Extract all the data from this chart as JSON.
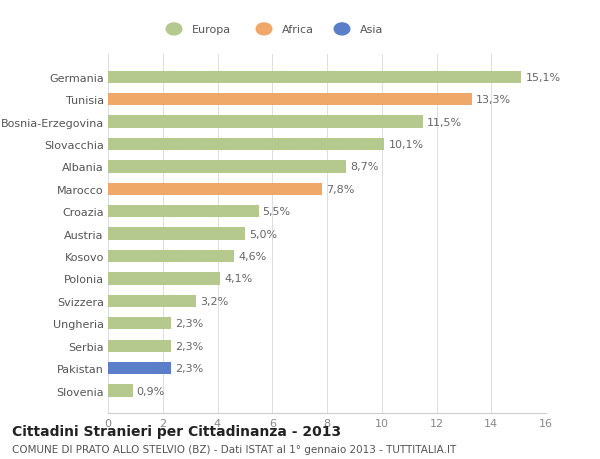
{
  "categories": [
    "Slovenia",
    "Pakistan",
    "Serbia",
    "Ungheria",
    "Svizzera",
    "Polonia",
    "Kosovo",
    "Austria",
    "Croazia",
    "Marocco",
    "Albania",
    "Slovacchia",
    "Bosnia-Erzegovina",
    "Tunisia",
    "Germania"
  ],
  "values": [
    0.9,
    2.3,
    2.3,
    2.3,
    3.2,
    4.1,
    4.6,
    5.0,
    5.5,
    7.8,
    8.7,
    10.1,
    11.5,
    13.3,
    15.1
  ],
  "labels": [
    "0,9%",
    "2,3%",
    "2,3%",
    "2,3%",
    "3,2%",
    "4,1%",
    "4,6%",
    "5,0%",
    "5,5%",
    "7,8%",
    "8,7%",
    "10,1%",
    "11,5%",
    "13,3%",
    "15,1%"
  ],
  "colors": [
    "#b5c98e",
    "#5b7ec9",
    "#b5c98e",
    "#b5c98e",
    "#b5c98e",
    "#b5c98e",
    "#b5c98e",
    "#b5c98e",
    "#b5c98e",
    "#f0a868",
    "#b5c98e",
    "#b5c98e",
    "#b5c98e",
    "#f0a868",
    "#b5c98e"
  ],
  "legend_labels": [
    "Europa",
    "Africa",
    "Asia"
  ],
  "legend_colors": [
    "#b5c98e",
    "#f0a868",
    "#5b7ec9"
  ],
  "xlim": [
    0,
    16
  ],
  "xticks": [
    0,
    2,
    4,
    6,
    8,
    10,
    12,
    14,
    16
  ],
  "title": "Cittadini Stranieri per Cittadinanza - 2013",
  "subtitle": "COMUNE DI PRATO ALLO STELVIO (BZ) - Dati ISTAT al 1° gennaio 2013 - TUTTITALIA.IT",
  "background_color": "#ffffff",
  "bar_height": 0.55,
  "label_fontsize": 8,
  "tick_fontsize": 8,
  "title_fontsize": 10,
  "subtitle_fontsize": 7.5
}
